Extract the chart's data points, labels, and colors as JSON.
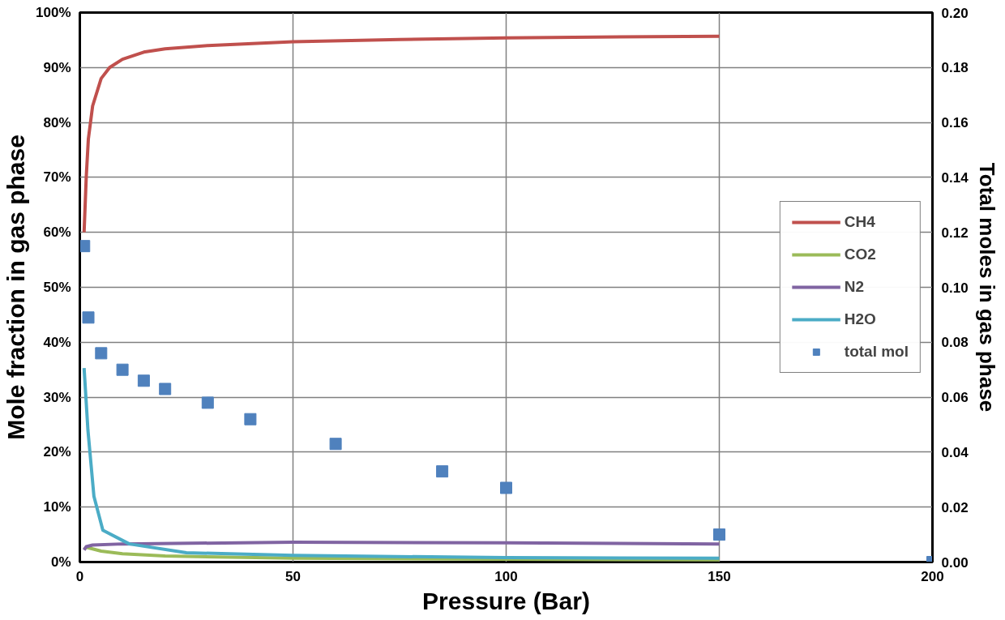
{
  "chart_data": {
    "type": "line",
    "xlabel": "Pressure (Bar)",
    "ylabel": "Mole fraction in gas phase",
    "y2label": "Total moles in gas phase",
    "xlim": [
      0,
      200
    ],
    "xticks": [
      0,
      50,
      100,
      150,
      200
    ],
    "ylim": [
      0,
      100
    ],
    "yticks": [
      {
        "value": 0,
        "label": "0%"
      },
      {
        "value": 10,
        "label": "10%"
      },
      {
        "value": 20,
        "label": "20%"
      },
      {
        "value": 30,
        "label": "30%"
      },
      {
        "value": 40,
        "label": "40%"
      },
      {
        "value": 50,
        "label": "50%"
      },
      {
        "value": 60,
        "label": "60%"
      },
      {
        "value": 70,
        "label": "70%"
      },
      {
        "value": 80,
        "label": "80%"
      },
      {
        "value": 90,
        "label": "90%"
      },
      {
        "value": 100,
        "label": "100%"
      }
    ],
    "y2lim": [
      0,
      0.2
    ],
    "y2ticks": [
      {
        "value": 0,
        "label": "0.00"
      },
      {
        "value": 0.02,
        "label": "0.02"
      },
      {
        "value": 0.04,
        "label": "0.04"
      },
      {
        "value": 0.06,
        "label": "0.06"
      },
      {
        "value": 0.08,
        "label": "0.08"
      },
      {
        "value": 0.1,
        "label": "0.10"
      },
      {
        "value": 0.12,
        "label": "0.12"
      },
      {
        "value": 0.14,
        "label": "0.14"
      },
      {
        "value": 0.16,
        "label": "0.16"
      },
      {
        "value": 0.18,
        "label": "0.18"
      },
      {
        "value": 0.2,
        "label": "0.20"
      }
    ],
    "grid": true,
    "legend": "right",
    "marker": "none",
    "line_style": "solid",
    "series": [
      {
        "name": "CH4",
        "color": "#c0504d",
        "x": [
          1,
          1.5,
          2,
          3,
          5,
          7,
          10,
          15,
          20,
          30,
          50,
          75,
          100,
          150
        ],
        "values": [
          60,
          70,
          77,
          83,
          88,
          90,
          91.5,
          92.8,
          93.4,
          94,
          94.7,
          95.1,
          95.4,
          95.7
        ]
      },
      {
        "name": "CO2",
        "color": "#9bbb59",
        "x": [
          1,
          1.5,
          3,
          5,
          10,
          20,
          50,
          100,
          150
        ],
        "values": [
          2.3,
          2.7,
          2.4,
          2,
          1.5,
          1.1,
          0.7,
          0.5,
          0.4
        ]
      },
      {
        "name": "N2",
        "color": "#8064a2",
        "x": [
          1,
          1.5,
          3,
          10,
          50,
          100,
          150
        ],
        "values": [
          2.2,
          2.8,
          3.1,
          3.3,
          3.6,
          3.5,
          3.3
        ]
      },
      {
        "name": "H2O",
        "color": "#4bacc6",
        "x": [
          1,
          1.9,
          3.3,
          5.4,
          11.6,
          25,
          50,
          100,
          150
        ],
        "values": [
          35.3,
          24,
          12,
          5.8,
          3.3,
          1.7,
          1.2,
          0.8,
          0.7
        ]
      },
      {
        "name": "total mol",
        "type": "scatter",
        "marker": "square",
        "axis": "y2",
        "color": "#4f81bd",
        "x": [
          1,
          2,
          5,
          10,
          15,
          20,
          30,
          40,
          60,
          85,
          100,
          150,
          200
        ],
        "values": [
          0.115,
          0.089,
          0.076,
          0.07,
          0.066,
          0.063,
          0.058,
          0.052,
          0.043,
          0.033,
          0.027,
          0.01,
          0.0
        ]
      }
    ]
  }
}
